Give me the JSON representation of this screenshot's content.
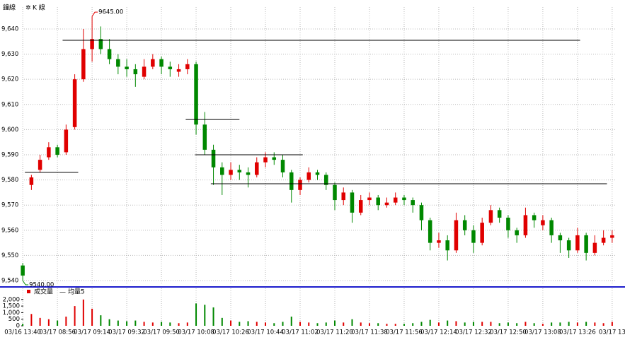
{
  "header": {
    "tabs": [
      "鐘線",
      "K 線"
    ]
  },
  "chart_data": [
    {
      "type": "candlestick",
      "up_color": "#e00000",
      "down_color": "#008800",
      "grid": true,
      "xlim": [
        -0.5,
        68.5
      ],
      "xticks": [
        {
          "value": 0,
          "label": "03/16 13:40"
        },
        {
          "value": 4,
          "label": "03/17 08:56"
        },
        {
          "value": 8,
          "label": "03/17 09:14"
        },
        {
          "value": 12,
          "label": "03/17 09:32"
        },
        {
          "value": 16,
          "label": "03/17 09:50"
        },
        {
          "value": 20,
          "label": "03/17 10:08"
        },
        {
          "value": 24,
          "label": "03/17 10:26"
        },
        {
          "value": 28,
          "label": "03/17 10:44"
        },
        {
          "value": 32,
          "label": "03/17 11:02"
        },
        {
          "value": 36,
          "label": "03/17 11:20"
        },
        {
          "value": 40,
          "label": "03/17 11:38"
        },
        {
          "value": 44,
          "label": "03/17 11:56"
        },
        {
          "value": 48,
          "label": "03/17 12:14"
        },
        {
          "value": 52,
          "label": "03/17 12:32"
        },
        {
          "value": 56,
          "label": "03/17 12:50"
        },
        {
          "value": 60,
          "label": "03/17 13:08"
        },
        {
          "value": 64,
          "label": "03/17 13:26"
        },
        {
          "value": 68,
          "label": "03/17 13"
        }
      ],
      "ylim": [
        9538.6,
        9648.7
      ],
      "yticks": [
        {
          "value": 9540,
          "label": "9,540"
        },
        {
          "value": 9550,
          "label": "9,550"
        },
        {
          "value": 9560,
          "label": "9,560"
        },
        {
          "value": 9570,
          "label": "9,570"
        },
        {
          "value": 9580,
          "label": "9,580"
        },
        {
          "value": 9590,
          "label": "9,590"
        },
        {
          "value": 9600,
          "label": "9,600"
        },
        {
          "value": 9610,
          "label": "9,610"
        },
        {
          "value": 9620,
          "label": "9,620"
        },
        {
          "value": 9630,
          "label": "9,630"
        },
        {
          "value": 9640,
          "label": "9,640"
        }
      ],
      "open": [
        9546,
        9578,
        9584,
        9589,
        9593,
        9591,
        9601,
        9620,
        9632,
        9636,
        9632,
        9628,
        9625,
        9624,
        9621,
        9625,
        9628,
        9625,
        9623,
        9624,
        9626,
        9602,
        9592,
        9585,
        9582,
        9584,
        9583,
        9582,
        9587,
        9589,
        9588,
        9583,
        9576,
        9580,
        9583,
        9582,
        9578,
        9572,
        9575,
        9567,
        9572,
        9573,
        9570,
        9571,
        9573,
        9572,
        9570,
        9564,
        9555,
        9556,
        9552,
        9564,
        9560,
        9555,
        9563,
        9568,
        9565,
        9560,
        9558,
        9566,
        9562,
        9564,
        9558,
        9556,
        9552,
        9558,
        9551,
        9555,
        9557
      ],
      "high": [
        9547,
        9582,
        9590,
        9595,
        9594,
        9602,
        9622,
        9640,
        9645,
        9641,
        9636,
        9630,
        9628,
        9626,
        9628,
        9630,
        9629,
        9627,
        9626,
        9628,
        9627,
        9607,
        9594,
        9587,
        9587,
        9586,
        9585,
        9589,
        9591,
        9591,
        9590,
        9584,
        9581,
        9585,
        9584,
        9583,
        9579,
        9577,
        9576,
        9574,
        9575,
        9574,
        9573,
        9575,
        9574,
        9573,
        9571,
        9565,
        9559,
        9558,
        9567,
        9566,
        9562,
        9565,
        9570,
        9569,
        9566,
        9561,
        9569,
        9567,
        9566,
        9565,
        9559,
        9557,
        9561,
        9559,
        9558,
        9560,
        9560
      ],
      "low": [
        9540,
        9576,
        9583,
        9588,
        9589,
        9590,
        9600,
        9619,
        9627,
        9630,
        9626,
        9622,
        9621,
        9617,
        9620,
        9624,
        9622,
        9621,
        9621,
        9622,
        9598,
        9590,
        9578,
        9574,
        9580,
        9580,
        9577,
        9581,
        9585,
        9586,
        9581,
        9571,
        9574,
        9579,
        9580,
        9576,
        9568,
        9570,
        9563,
        9566,
        9570,
        9568,
        9569,
        9570,
        9570,
        9567,
        9560,
        9552,
        9553,
        9548,
        9551,
        9558,
        9551,
        9554,
        9562,
        9563,
        9557,
        9555,
        9557,
        9561,
        9560,
        9555,
        9551,
        9549,
        9551,
        9548,
        9550,
        9554,
        9555
      ],
      "close": [
        9542,
        9581,
        9588,
        9593,
        9590,
        9600,
        9620,
        9632,
        9636,
        9632,
        9628,
        9625,
        9624,
        9622,
        9625,
        9628,
        9625,
        9624,
        9624,
        9626,
        9602,
        9592,
        9585,
        9582,
        9584,
        9583,
        9582,
        9587,
        9589,
        9588,
        9583,
        9576,
        9580,
        9583,
        9582,
        9578,
        9572,
        9575,
        9567,
        9572,
        9573,
        9570,
        9571,
        9573,
        9572,
        9570,
        9564,
        9555,
        9556,
        9552,
        9564,
        9560,
        9555,
        9563,
        9568,
        9565,
        9560,
        9558,
        9566,
        9564,
        9564,
        9558,
        9556,
        9552,
        9558,
        9551,
        9555,
        9557,
        9558
      ],
      "hlines": [
        {
          "y": 9635.5,
          "x": [
            4.6,
            64.3
          ]
        },
        {
          "y": 9583,
          "x": [
            0.25,
            6.4
          ]
        },
        {
          "y": 9604,
          "x": [
            18.8,
            25
          ]
        },
        {
          "y": 9590,
          "x": [
            19.9,
            32.3
          ]
        },
        {
          "y": 9578.5,
          "x": [
            21.7,
            67.4
          ]
        }
      ],
      "annotations": [
        {
          "index": 8,
          "value": 9645,
          "label": "9645.00",
          "color": "#e00000"
        },
        {
          "index": 0,
          "value": 9540,
          "label": "9540.00",
          "color": "#008800"
        }
      ]
    },
    {
      "type": "bar",
      "legend": [
        "成交量",
        "均量5"
      ],
      "ylim": [
        0,
        2850
      ],
      "yticks": [
        0,
        500,
        {
          "value": 1000,
          "label": "1,000"
        },
        {
          "value": 1500,
          "label": "1,500"
        },
        {
          "value": 2000,
          "label": "2,000"
        }
      ],
      "values": [
        150,
        900,
        600,
        500,
        400,
        700,
        1500,
        2000,
        1300,
        800,
        500,
        400,
        350,
        400,
        300,
        250,
        300,
        250,
        200,
        250,
        1700,
        1600,
        1400,
        600,
        400,
        300,
        350,
        300,
        250,
        200,
        300,
        700,
        300,
        250,
        200,
        250,
        400,
        250,
        500,
        250,
        200,
        200,
        150,
        150,
        150,
        200,
        300,
        450,
        250,
        400,
        350,
        250,
        300,
        300,
        300,
        200,
        250,
        200,
        300,
        200,
        150,
        250,
        250,
        300,
        250,
        300,
        250,
        200,
        300
      ]
    }
  ]
}
